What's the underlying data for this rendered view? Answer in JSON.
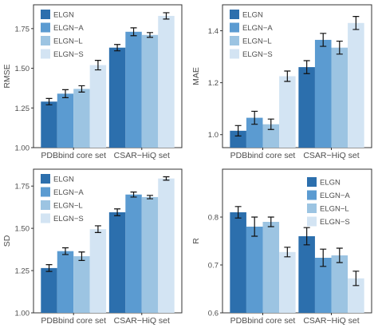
{
  "figure": {
    "series_colors": [
      "#2c6fad",
      "#5b9bd1",
      "#9cc4e2",
      "#d3e4f3"
    ],
    "frame_color": "#333333",
    "text_color": "#4d4d4d"
  },
  "chart_data": [
    {
      "type": "bar",
      "ylabel": "RMSE",
      "xlabel": "",
      "categories": [
        "PDBbind core set",
        "CSAR−HiQ set"
      ],
      "ylim": [
        1.0,
        1.9
      ],
      "yticks": [
        1.0,
        1.25,
        1.5,
        1.75
      ],
      "ytick_labels": [
        "1.00",
        "1.25",
        "1.50",
        "1.75"
      ],
      "legend_position": "top-left",
      "error_bars": true,
      "series": [
        {
          "name": "ELGN",
          "values": [
            1.29,
            1.63
          ],
          "errors": [
            0.02,
            0.02
          ]
        },
        {
          "name": "ELGN−A",
          "values": [
            1.34,
            1.73
          ],
          "errors": [
            0.025,
            0.025
          ]
        },
        {
          "name": "ELGN−L",
          "values": [
            1.37,
            1.71
          ],
          "errors": [
            0.02,
            0.015
          ]
        },
        {
          "name": "ELGN−S",
          "values": [
            1.52,
            1.83
          ],
          "errors": [
            0.03,
            0.02
          ]
        }
      ]
    },
    {
      "type": "bar",
      "ylabel": "MAE",
      "xlabel": "",
      "categories": [
        "PDBbind core set",
        "CSAR−HiQ set"
      ],
      "ylim": [
        0.95,
        1.5
      ],
      "yticks": [
        1.0,
        1.2,
        1.4
      ],
      "ytick_labels": [
        "1.0",
        "1.2",
        "1.4"
      ],
      "legend_position": "top-left",
      "error_bars": true,
      "series": [
        {
          "name": "ELGN",
          "values": [
            1.015,
            1.26
          ],
          "errors": [
            0.02,
            0.025
          ]
        },
        {
          "name": "ELGN−A",
          "values": [
            1.065,
            1.365
          ],
          "errors": [
            0.025,
            0.025
          ]
        },
        {
          "name": "ELGN−L",
          "values": [
            1.04,
            1.335
          ],
          "errors": [
            0.02,
            0.025
          ]
        },
        {
          "name": "ELGN−S",
          "values": [
            1.225,
            1.43
          ],
          "errors": [
            0.02,
            0.025
          ]
        }
      ]
    },
    {
      "type": "bar",
      "ylabel": "SD",
      "xlabel": "",
      "categories": [
        "PDBbind core set",
        "CSAR−HiQ set"
      ],
      "ylim": [
        1.0,
        1.85
      ],
      "yticks": [
        1.0,
        1.25,
        1.5,
        1.75
      ],
      "ytick_labels": [
        "1.00",
        "1.25",
        "1.50",
        "1.75"
      ],
      "legend_position": "top-left",
      "error_bars": true,
      "series": [
        {
          "name": "ELGN",
          "values": [
            1.265,
            1.595
          ],
          "errors": [
            0.02,
            0.02
          ]
        },
        {
          "name": "ELGN−A",
          "values": [
            1.365,
            1.7
          ],
          "errors": [
            0.02,
            0.015
          ]
        },
        {
          "name": "ELGN−L",
          "values": [
            1.335,
            1.685
          ],
          "errors": [
            0.025,
            0.01
          ]
        },
        {
          "name": "ELGN−S",
          "values": [
            1.495,
            1.795
          ],
          "errors": [
            0.02,
            0.01
          ]
        }
      ]
    },
    {
      "type": "bar",
      "ylabel": "R",
      "xlabel": "",
      "categories": [
        "PDBbind core set",
        "CSAR−HiQ set"
      ],
      "ylim": [
        0.6,
        0.9
      ],
      "yticks": [
        0.6,
        0.7,
        0.8
      ],
      "ytick_labels": [
        "0.6",
        "0.7",
        "0.8"
      ],
      "legend_position": "top-right",
      "error_bars": true,
      "series": [
        {
          "name": "ELGN",
          "values": [
            0.81,
            0.76
          ],
          "errors": [
            0.012,
            0.018
          ]
        },
        {
          "name": "ELGN−A",
          "values": [
            0.78,
            0.715
          ],
          "errors": [
            0.02,
            0.018
          ]
        },
        {
          "name": "ELGN−L",
          "values": [
            0.79,
            0.72
          ],
          "errors": [
            0.01,
            0.015
          ]
        },
        {
          "name": "ELGN−S",
          "values": [
            0.727,
            0.672
          ],
          "errors": [
            0.01,
            0.015
          ]
        }
      ]
    }
  ]
}
